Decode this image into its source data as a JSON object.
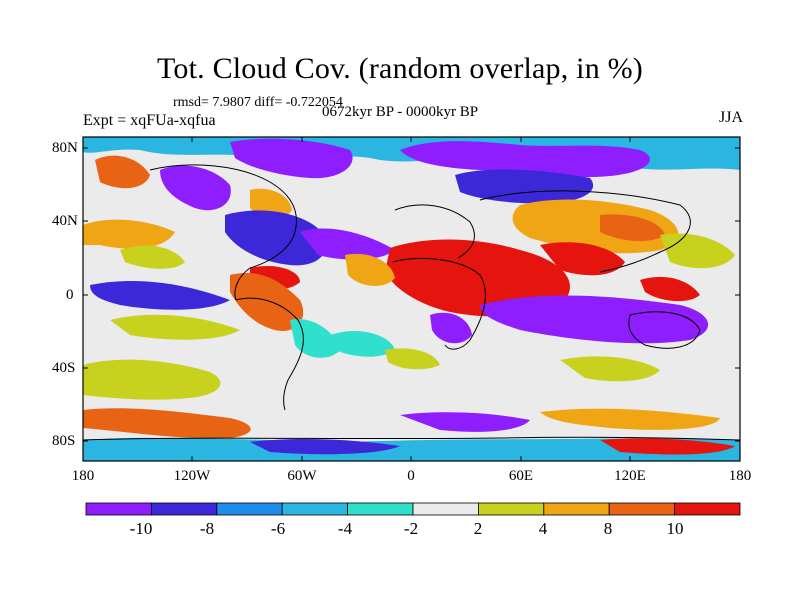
{
  "title": "Tot. Cloud Cov. (random overlap, in %)",
  "stats": "rmsd= 7.9807 diff= -0.722054",
  "experiment": "Expt = xqFUa-xqfua",
  "period": "0672kyr BP - 0000kyr BP",
  "season": "JJA",
  "lat_ticks": [
    "80N",
    "40N",
    "0",
    "40S",
    "80S"
  ],
  "lon_ticks": [
    "180",
    "120W",
    "60W",
    "0",
    "60E",
    "120E",
    "180"
  ],
  "colorbar": {
    "labels": [
      "-10",
      "-8",
      "-6",
      "-4",
      "-2",
      "2",
      "4",
      "8",
      "10"
    ],
    "colors": [
      "#8f1eff",
      "#3c28d8",
      "#1e8ce8",
      "#2ab6e0",
      "#30e0cc",
      "#ebebeb",
      "#c8d21e",
      "#f0a514",
      "#e86414",
      "#e6140f"
    ]
  }
}
